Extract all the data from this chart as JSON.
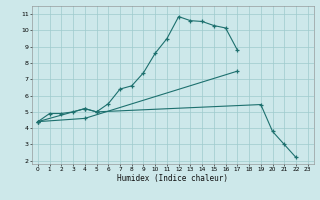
{
  "xlabel": "Humidex (Indice chaleur)",
  "xlim": [
    -0.5,
    23.5
  ],
  "ylim": [
    1.8,
    11.5
  ],
  "xtick_vals": [
    0,
    1,
    2,
    3,
    4,
    5,
    6,
    7,
    8,
    9,
    10,
    11,
    12,
    13,
    14,
    15,
    16,
    17,
    18,
    19,
    20,
    21,
    22,
    23
  ],
  "ytick_vals": [
    2,
    3,
    4,
    5,
    6,
    7,
    8,
    9,
    10,
    11
  ],
  "bg_color": "#cde8ea",
  "grid_color": "#9ecbcd",
  "line_color": "#1d706e",
  "line1_x": [
    0,
    1,
    2,
    3,
    4,
    5,
    6,
    7,
    8,
    9,
    10,
    11,
    12,
    13,
    14,
    15,
    16,
    17
  ],
  "line1_y": [
    4.4,
    4.9,
    4.9,
    5.0,
    5.2,
    5.0,
    5.5,
    6.4,
    6.6,
    7.4,
    8.6,
    9.5,
    10.85,
    10.6,
    10.55,
    10.3,
    10.15,
    8.8
  ],
  "line2_x": [
    0,
    4,
    5,
    19,
    20,
    21,
    22
  ],
  "line2_y": [
    4.4,
    5.2,
    5.0,
    5.45,
    3.8,
    3.0,
    2.2
  ],
  "line3_x": [
    0,
    4,
    17
  ],
  "line3_y": [
    4.4,
    4.6,
    7.5
  ]
}
